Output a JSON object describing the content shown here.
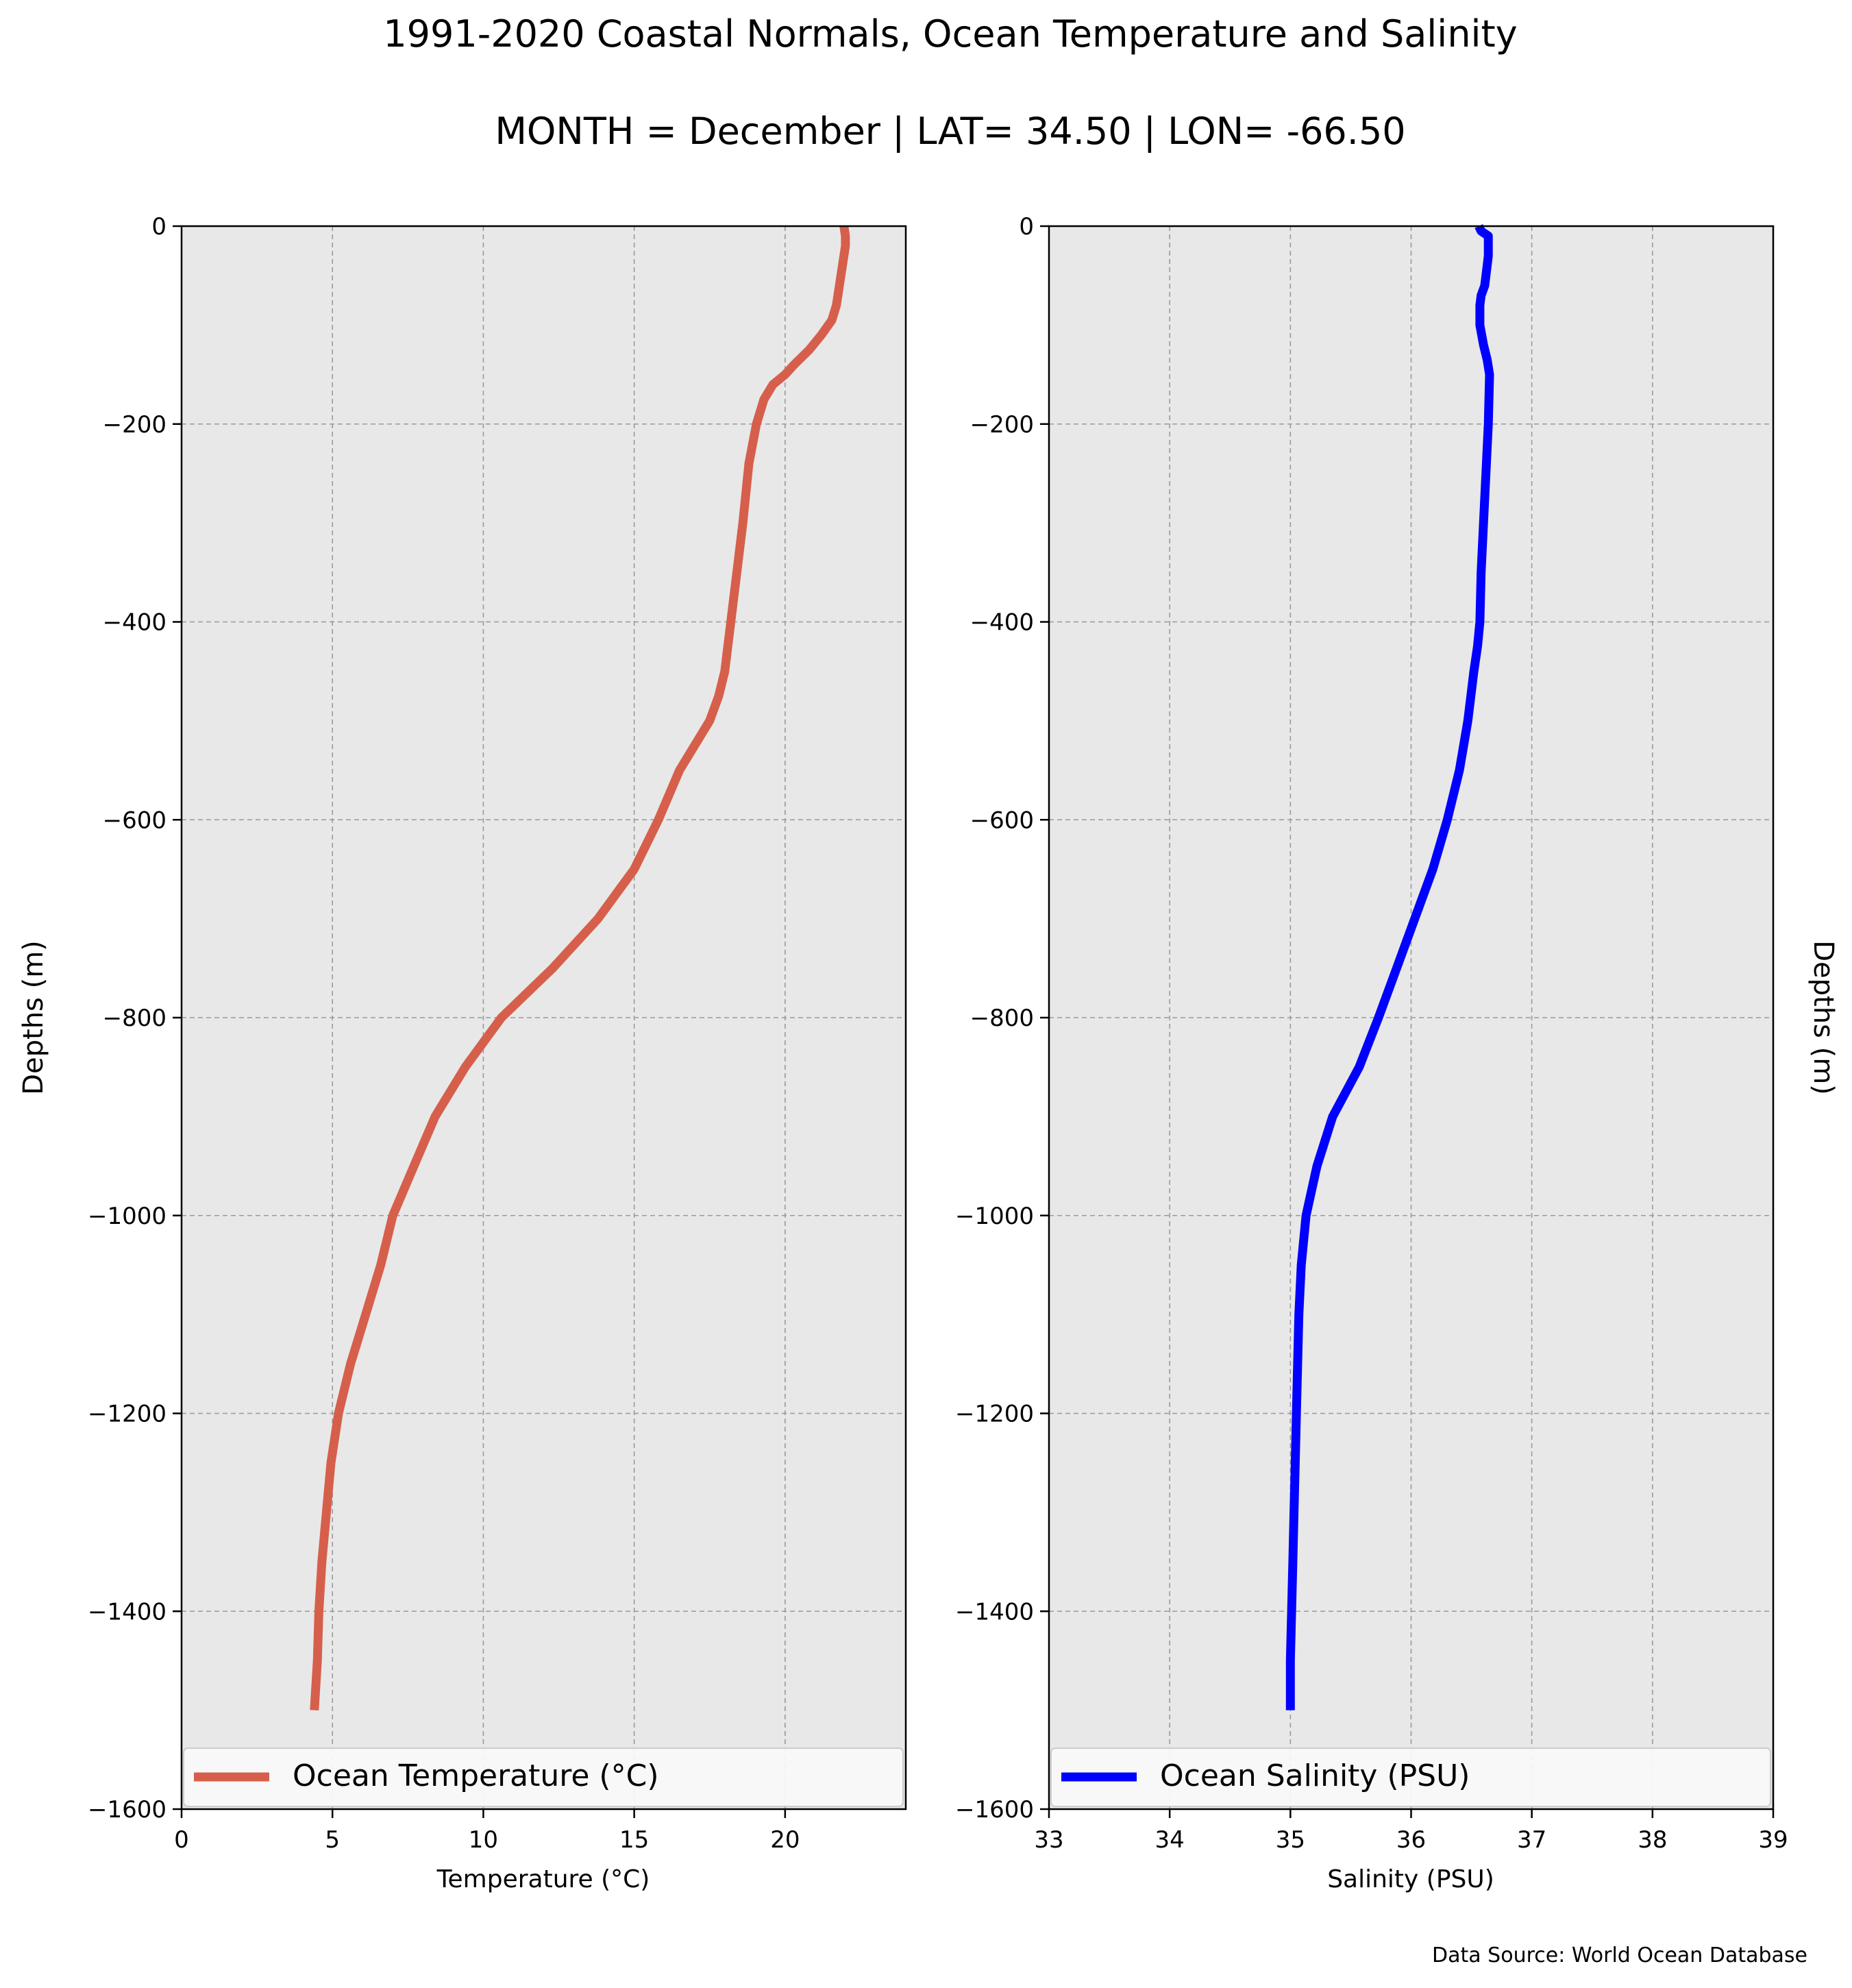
{
  "title": "1991-2020 Coastal Normals, Ocean Temperature and Salinity",
  "subtitle": "MONTH = December | LAT= 34.50 | LON= -66.50",
  "source_note": "Data Source: World Ocean Database",
  "colors": {
    "panel_bg": "#e8e8e8",
    "grid": "#9a9a9a",
    "temperature": "#d65f4c",
    "salinity": "#0000ff"
  },
  "chart_data": [
    {
      "type": "line",
      "xlabel": "Temperature ($^\\circ$C)",
      "ylabel": "Depths (m)",
      "xlim": [
        0,
        24
      ],
      "ylim": [
        -1600,
        0
      ],
      "x_ticks": [
        0,
        5,
        10,
        15,
        20
      ],
      "x_tick_labels": [
        "0",
        "5",
        "10",
        "15",
        "20"
      ],
      "y_ticks": [
        0,
        -200,
        -400,
        -600,
        -800,
        -1000,
        -1200,
        -1400,
        -1600
      ],
      "y_tick_labels": [
        "0",
        "−200",
        "−400",
        "−600",
        "−800",
        "−1000",
        "−1200",
        "−1400",
        "−1600"
      ],
      "grid": true,
      "legend": "bottom",
      "series": [
        {
          "name": "Ocean Temperature ($^\\circ$C)",
          "color": "#d65f4c",
          "x": [
            21.95,
            22.0,
            22.0,
            21.95,
            21.9,
            21.85,
            21.8,
            21.7,
            21.55,
            21.2,
            20.8,
            20.3,
            20.0,
            19.6,
            19.3,
            19.05,
            18.8,
            18.6,
            18.4,
            18.2,
            18.0,
            17.8,
            17.5,
            17.0,
            16.5,
            15.8,
            15.0,
            13.8,
            12.3,
            10.6,
            9.4,
            8.4,
            7.7,
            7.0,
            6.6,
            6.1,
            5.6,
            5.2,
            4.95,
            4.8,
            4.65,
            4.55,
            4.5,
            4.4
          ],
          "y": [
            0,
            -10,
            -20,
            -30,
            -40,
            -50,
            -60,
            -80,
            -95,
            -110,
            -125,
            -140,
            -150,
            -160,
            -175,
            -200,
            -240,
            -300,
            -350,
            -400,
            -450,
            -475,
            -500,
            -525,
            -550,
            -600,
            -650,
            -700,
            -750,
            -800,
            -850,
            -900,
            -950,
            -1000,
            -1050,
            -1100,
            -1150,
            -1200,
            -1250,
            -1300,
            -1350,
            -1400,
            -1450,
            -1500
          ]
        }
      ]
    },
    {
      "type": "line",
      "xlabel": "Salinity (PSU)",
      "ylabel": "Depths (m)",
      "xlim": [
        33,
        39
      ],
      "ylim": [
        -1600,
        0
      ],
      "x_ticks": [
        33,
        34,
        35,
        36,
        37,
        38,
        39
      ],
      "x_tick_labels": [
        "33",
        "34",
        "35",
        "36",
        "37",
        "38",
        "39"
      ],
      "y_ticks": [
        0,
        -200,
        -400,
        -600,
        -800,
        -1000,
        -1200,
        -1400,
        -1600
      ],
      "y_tick_labels": [
        "0",
        "−200",
        "−400",
        "−600",
        "−800",
        "−1000",
        "−1200",
        "−1400",
        "−1600"
      ],
      "grid": true,
      "legend": "bottom",
      "series": [
        {
          "name": "Ocean Salinity (PSU)",
          "color": "#0000ff",
          "x": [
            36.56,
            36.58,
            36.64,
            36.64,
            36.64,
            36.63,
            36.62,
            36.61,
            36.58,
            36.57,
            36.57,
            36.6,
            36.63,
            36.65,
            36.64,
            36.62,
            36.6,
            36.58,
            36.57,
            36.55,
            36.52,
            36.47,
            36.4,
            36.3,
            36.18,
            36.03,
            35.88,
            35.73,
            35.57,
            35.35,
            35.22,
            35.13,
            35.09,
            35.07,
            35.06,
            35.05,
            35.04,
            35.03,
            35.02,
            35.01,
            35.0,
            35.0
          ],
          "y": [
            0,
            -5,
            -10,
            -20,
            -30,
            -40,
            -50,
            -60,
            -70,
            -80,
            -100,
            -120,
            -135,
            -150,
            -200,
            -250,
            -300,
            -350,
            -400,
            -425,
            -450,
            -500,
            -550,
            -600,
            -650,
            -700,
            -750,
            -800,
            -850,
            -900,
            -950,
            -1000,
            -1050,
            -1100,
            -1150,
            -1200,
            -1250,
            -1300,
            -1350,
            -1400,
            -1450,
            -1500
          ]
        }
      ]
    }
  ]
}
